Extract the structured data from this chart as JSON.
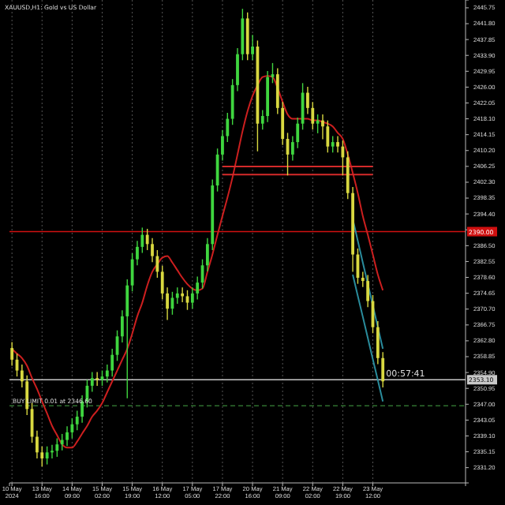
{
  "chart_data": {
    "type": "candlestick",
    "title": "XAUUSD,H1: Gold vs US Dollar",
    "categories": [
      "10 May 2024",
      null,
      null,
      null,
      null,
      null,
      "13 May 16:00",
      null,
      null,
      null,
      null,
      null,
      "14 May 09:00",
      null,
      null,
      null,
      null,
      null,
      "15 May 02:00",
      null,
      null,
      null,
      null,
      null,
      "15 May 19:00",
      null,
      null,
      null,
      null,
      null,
      "16 May 12:00",
      null,
      null,
      null,
      null,
      null,
      "17 May 05:00",
      null,
      null,
      null,
      null,
      null,
      "17 May 22:00",
      null,
      null,
      null,
      null,
      null,
      "20 May 16:00",
      null,
      null,
      null,
      null,
      null,
      "21 May 09:00",
      null,
      null,
      null,
      null,
      null,
      "22 May 02:00",
      null,
      null,
      null,
      null,
      null,
      "22 May 19:00",
      null,
      null,
      null,
      null,
      null,
      "23 May 12:00",
      null,
      null,
      null,
      null,
      null,
      null,
      null,
      null,
      null,
      null,
      null,
      null,
      null,
      null,
      null,
      null,
      null,
      null
    ],
    "ohlc": [
      [
        2361.0,
        2362.5,
        2356.6,
        2358.1
      ],
      [
        2358.1,
        2359.6,
        2353.9,
        2355.4
      ],
      [
        2355.4,
        2356.9,
        2351.2,
        2352.7
      ],
      [
        2352.7,
        2354.2,
        2344.3,
        2345.8
      ],
      [
        2345.8,
        2347.3,
        2337.4,
        2338.9
      ],
      [
        2338.9,
        2340.4,
        2333.5,
        2335.0
      ],
      [
        2335.0,
        2336.5,
        2331.5,
        2333.5
      ],
      [
        2333.5,
        2336.5,
        2332.0,
        2335.0
      ],
      [
        2335.0,
        2336.9,
        2333.5,
        2335.4
      ],
      [
        2335.4,
        2338.5,
        2333.9,
        2337.0
      ],
      [
        2337.0,
        2339.6,
        2335.5,
        2338.1
      ],
      [
        2338.1,
        2341.5,
        2336.6,
        2340.0
      ],
      [
        2340.0,
        2343.5,
        2338.5,
        2342.0
      ],
      [
        2342.0,
        2345.4,
        2340.5,
        2343.9
      ],
      [
        2343.9,
        2349.2,
        2342.4,
        2347.7
      ],
      [
        2347.7,
        2353.1,
        2346.2,
        2351.6
      ],
      [
        2351.6,
        2355.0,
        2350.1,
        2353.5
      ],
      [
        2353.5,
        2355.0,
        2351.6,
        2353.1
      ],
      [
        2353.1,
        2355.4,
        2351.6,
        2353.9
      ],
      [
        2353.9,
        2356.9,
        2352.4,
        2355.4
      ],
      [
        2355.4,
        2360.8,
        2353.9,
        2359.3
      ],
      [
        2359.3,
        2365.4,
        2357.8,
        2363.9
      ],
      [
        2363.9,
        2370.4,
        2362.4,
        2368.9
      ],
      [
        2368.9,
        2378.1,
        2348.5,
        2376.6
      ],
      [
        2376.6,
        2384.6,
        2375.1,
        2383.1
      ],
      [
        2383.1,
        2387.7,
        2381.6,
        2386.2
      ],
      [
        2386.2,
        2391.0,
        2384.7,
        2389.2
      ],
      [
        2389.2,
        2390.7,
        2385.4,
        2386.9
      ],
      [
        2386.9,
        2388.4,
        2382.4,
        2383.9
      ],
      [
        2383.9,
        2385.4,
        2378.5,
        2380.0
      ],
      [
        2380.0,
        2381.5,
        2373.1,
        2374.6
      ],
      [
        2374.6,
        2376.1,
        2368.0,
        2370.8
      ],
      [
        2370.8,
        2375.0,
        2369.3,
        2373.5
      ],
      [
        2373.5,
        2376.1,
        2372.0,
        2374.6
      ],
      [
        2374.6,
        2376.1,
        2372.4,
        2373.9
      ],
      [
        2373.9,
        2375.4,
        2370.5,
        2372.3
      ],
      [
        2372.3,
        2376.1,
        2370.8,
        2374.6
      ],
      [
        2374.6,
        2378.8,
        2373.1,
        2377.3
      ],
      [
        2377.3,
        2383.1,
        2375.8,
        2381.6
      ],
      [
        2381.6,
        2388.4,
        2380.1,
        2386.9
      ],
      [
        2386.9,
        2403.0,
        2385.4,
        2401.5
      ],
      [
        2401.5,
        2410.7,
        2400.0,
        2409.2
      ],
      [
        2409.2,
        2415.3,
        2407.7,
        2413.8
      ],
      [
        2413.8,
        2419.6,
        2412.3,
        2418.1
      ],
      [
        2418.1,
        2428.0,
        2416.6,
        2426.5
      ],
      [
        2426.5,
        2435.7,
        2425.0,
        2434.2
      ],
      [
        2434.2,
        2445.5,
        2432.7,
        2443.1
      ],
      [
        2443.1,
        2444.6,
        2432.7,
        2434.2
      ],
      [
        2434.2,
        2439.0,
        2432.7,
        2436.1
      ],
      [
        2436.1,
        2437.6,
        2410.0,
        2416.9
      ],
      [
        2416.9,
        2420.3,
        2415.4,
        2418.8
      ],
      [
        2418.8,
        2430.0,
        2417.3,
        2428.5
      ],
      [
        2428.5,
        2432.0,
        2427.0,
        2429.2
      ],
      [
        2429.2,
        2430.7,
        2419.3,
        2420.8
      ],
      [
        2420.8,
        2422.3,
        2411.6,
        2413.1
      ],
      [
        2413.1,
        2414.6,
        2404.0,
        2409.2
      ],
      [
        2409.2,
        2413.8,
        2407.7,
        2412.3
      ],
      [
        2412.3,
        2418.4,
        2410.8,
        2416.9
      ],
      [
        2416.9,
        2427.0,
        2415.4,
        2424.6
      ],
      [
        2424.6,
        2426.1,
        2419.3,
        2420.8
      ],
      [
        2420.8,
        2422.3,
        2415.4,
        2416.9
      ],
      [
        2416.9,
        2419.2,
        2414.5,
        2417.7
      ],
      [
        2417.7,
        2419.2,
        2413.0,
        2416.2
      ],
      [
        2416.2,
        2417.7,
        2409.7,
        2411.2
      ],
      [
        2411.2,
        2413.8,
        2409.7,
        2412.3
      ],
      [
        2412.3,
        2413.8,
        2409.7,
        2411.2
      ],
      [
        2411.2,
        2412.7,
        2404.0,
        2408.5
      ],
      [
        2408.5,
        2410.0,
        2398.1,
        2399.6
      ],
      [
        2399.6,
        2401.1,
        2380.0,
        2384.3
      ],
      [
        2384.3,
        2385.8,
        2377.0,
        2378.5
      ],
      [
        2378.5,
        2380.0,
        2376.2,
        2377.7
      ],
      [
        2377.7,
        2379.2,
        2371.2,
        2372.7
      ],
      [
        2372.7,
        2374.2,
        2364.7,
        2366.2
      ],
      [
        2366.2,
        2367.7,
        2357.0,
        2358.5
      ],
      [
        2358.5,
        2360.0,
        2351.2,
        2352.7
      ],
      null,
      null,
      null,
      null,
      null,
      null,
      null,
      null,
      null,
      null,
      null,
      null,
      null,
      null,
      null,
      null
    ],
    "colors": [
      "#d8d840",
      "#d8d840",
      "#d8d840",
      "#d8d840",
      "#d8d840",
      "#d8d840",
      "#d8d840",
      "#3fd63f",
      "#3fd63f",
      "#3fd63f",
      "#3fd63f",
      "#3fd63f",
      "#3fd63f",
      "#3fd63f",
      "#3fd63f",
      "#3fd63f",
      "#3fd63f",
      "#d8d840",
      "#3fd63f",
      "#3fd63f",
      "#3fd63f",
      "#3fd63f",
      "#3fd63f",
      "#3fd63f",
      "#3fd63f",
      "#3fd63f",
      "#3fd63f",
      "#d8d840",
      "#d8d840",
      "#d8d840",
      "#d8d840",
      "#d8d840",
      "#3fd63f",
      "#3fd63f",
      "#d8d840",
      "#d8d840",
      "#3fd63f",
      "#3fd63f",
      "#3fd63f",
      "#3fd63f",
      "#3fd63f",
      "#3fd63f",
      "#3fd63f",
      "#3fd63f",
      "#3fd63f",
      "#3fd63f",
      "#3fd63f",
      "#d8d840",
      "#3fd63f",
      "#d8d840",
      "#3fd63f",
      "#3fd63f",
      "#3fd63f",
      "#d8d840",
      "#d8d840",
      "#d8d840",
      "#3fd63f",
      "#3fd63f",
      "#3fd63f",
      "#d8d840",
      "#d8d840",
      "#3fd63f",
      "#d8d840",
      "#d8d840",
      "#3fd63f",
      "#d8d840",
      "#d8d840",
      "#d8d840",
      "#d8d840",
      "#d8d840",
      "#d8d840",
      "#d8d840",
      "#d8d840",
      "#d8d840",
      "#d8d840",
      null,
      null,
      null,
      null,
      null,
      null,
      null,
      null,
      null,
      null,
      null,
      null,
      null,
      null,
      null,
      null
    ],
    "series": [
      {
        "type": "line",
        "color": "#cc1f1f",
        "values": [
          2360.8,
          2359.6,
          2358.5,
          2356.6,
          2353.5,
          2350.8,
          2347.7,
          2344.7,
          2341.6,
          2339.3,
          2337.0,
          2336.2,
          2336.2,
          2337.7,
          2339.7,
          2341.6,
          2343.9,
          2345.4,
          2347.3,
          2350.0,
          2352.7,
          2355.4,
          2358.1,
          2360.8,
          2364.6,
          2368.9,
          2372.3,
          2376.6,
          2380.0,
          2381.9,
          2383.5,
          2383.9,
          2382.3,
          2380.4,
          2378.5,
          2376.9,
          2375.8,
          2375.4,
          2375.8,
          2380.0,
          2384.3,
          2389.2,
          2393.9,
          2398.5,
          2403.5,
          2409.2,
          2415.0,
          2420.0,
          2423.8,
          2426.5,
          2428.5,
          2428.8,
          2428.5,
          2425.8,
          2422.3,
          2419.2,
          2418.1,
          2418.1,
          2418.1,
          2418.1,
          2417.7,
          2417.7,
          2417.3,
          2416.9,
          2416.2,
          2414.6,
          2413.1,
          2409.2,
          2404.6,
          2399.6,
          2393.9,
          2389.2,
          2384.3,
          2379.3,
          2375.4,
          null,
          null,
          null,
          null,
          null,
          null,
          null,
          null,
          null,
          null,
          null,
          null,
          null,
          null,
          null,
          null
        ]
      },
      {
        "type": "line",
        "color": "#d42a2a",
        "values": [
          null,
          null,
          null,
          null,
          null,
          null,
          null,
          null,
          null,
          null,
          null,
          null,
          null,
          null,
          null,
          null,
          null,
          null,
          null,
          null,
          null,
          null,
          null,
          null,
          null,
          null,
          null,
          null,
          null,
          null,
          null,
          null,
          null,
          null,
          null,
          null,
          null,
          null,
          null,
          null,
          null,
          null,
          2406.2,
          2406.2,
          2406.2,
          2406.2,
          2406.2,
          2406.2,
          2406.2,
          2406.2,
          2406.2,
          2406.2,
          2406.2,
          2406.2,
          2406.2,
          2406.2,
          2406.2,
          2406.2,
          2406.2,
          2406.2,
          2406.2,
          2406.2,
          2406.2,
          2406.2,
          2406.2,
          2406.2,
          2406.2,
          2406.2,
          2406.2,
          2406.2,
          2406.2,
          2406.2,
          2406.2,
          null,
          null,
          null,
          null,
          null,
          null,
          null,
          null,
          null,
          null,
          null,
          null,
          null,
          null,
          null,
          null,
          null,
          null
        ]
      },
      {
        "type": "line",
        "color": "#d42a2a",
        "values": [
          null,
          null,
          null,
          null,
          null,
          null,
          null,
          null,
          null,
          null,
          null,
          null,
          null,
          null,
          null,
          null,
          null,
          null,
          null,
          null,
          null,
          null,
          null,
          null,
          null,
          null,
          null,
          null,
          null,
          null,
          null,
          null,
          null,
          null,
          null,
          null,
          null,
          null,
          null,
          null,
          null,
          null,
          2404.2,
          2404.2,
          2404.2,
          2404.2,
          2404.2,
          2404.2,
          2404.2,
          2404.2,
          2404.2,
          2404.2,
          2404.2,
          2404.2,
          2404.2,
          2404.2,
          2404.2,
          2404.2,
          2404.2,
          2404.2,
          2404.2,
          2404.2,
          2404.2,
          2404.2,
          2404.2,
          2404.2,
          2404.2,
          2404.2,
          2404.2,
          2404.2,
          2404.2,
          2404.2,
          2404.2,
          null,
          null,
          null,
          null,
          null,
          null,
          null,
          null,
          null,
          null,
          null,
          null,
          null,
          null,
          null,
          null,
          null,
          null
        ]
      },
      {
        "type": "line",
        "color": "#2a8c9c",
        "values": [
          null,
          null,
          null,
          null,
          null,
          null,
          null,
          null,
          null,
          null,
          null,
          null,
          null,
          null,
          null,
          null,
          null,
          null,
          null,
          null,
          null,
          null,
          null,
          null,
          null,
          null,
          null,
          null,
          null,
          null,
          null,
          null,
          null,
          null,
          null,
          null,
          null,
          null,
          null,
          null,
          null,
          null,
          null,
          null,
          null,
          null,
          null,
          null,
          null,
          null,
          null,
          null,
          null,
          null,
          null,
          null,
          null,
          null,
          null,
          null,
          null,
          null,
          null,
          null,
          null,
          null,
          null,
          null,
          2393.1,
          2387.7,
          2382.3,
          2377.0,
          2371.6,
          2366.2,
          2360.8,
          null,
          null,
          null,
          null,
          null,
          null,
          null,
          null,
          null,
          null,
          null,
          null,
          null,
          null,
          null,
          null
        ]
      },
      {
        "type": "line",
        "color": "#2a8c9c",
        "values": [
          null,
          null,
          null,
          null,
          null,
          null,
          null,
          null,
          null,
          null,
          null,
          null,
          null,
          null,
          null,
          null,
          null,
          null,
          null,
          null,
          null,
          null,
          null,
          null,
          null,
          null,
          null,
          null,
          null,
          null,
          null,
          null,
          null,
          null,
          null,
          null,
          null,
          null,
          null,
          null,
          null,
          null,
          null,
          null,
          null,
          null,
          null,
          null,
          null,
          null,
          null,
          null,
          null,
          null,
          null,
          null,
          null,
          null,
          null,
          null,
          null,
          null,
          null,
          null,
          null,
          null,
          null,
          null,
          2379.3,
          2374.0,
          2368.8,
          2363.5,
          2358.2,
          2353.0,
          2347.7,
          null,
          null,
          null,
          null,
          null,
          null,
          null,
          null,
          null,
          null,
          null,
          null,
          null,
          null,
          null,
          null
        ]
      }
    ],
    "ylim": [
      2327.4,
      2447.7
    ],
    "yticks": [
      {
        "value": 2331.2,
        "label": "2331.20"
      },
      {
        "value": 2335.15,
        "label": "2335.15"
      },
      {
        "value": 2339.1,
        "label": "2339.10"
      },
      {
        "value": 2343.05,
        "label": "2343.05"
      },
      {
        "value": 2347.0,
        "label": "2347.00"
      },
      {
        "value": 2350.95,
        "label": "2350.95"
      },
      {
        "value": 2354.9,
        "label": "2354.90"
      },
      {
        "value": 2358.85,
        "label": "2358.85"
      },
      {
        "value": 2362.8,
        "label": "2362.80"
      },
      {
        "value": 2366.75,
        "label": "2366.75"
      },
      {
        "value": 2370.7,
        "label": "2370.70"
      },
      {
        "value": 2374.65,
        "label": "2374.65"
      },
      {
        "value": 2378.6,
        "label": "2378.60"
      },
      {
        "value": 2382.55,
        "label": "2382.55"
      },
      {
        "value": 2386.5,
        "label": "2386.50"
      },
      {
        "value": 2390.45,
        "label": null
      },
      {
        "value": 2394.4,
        "label": "2394.40"
      },
      {
        "value": 2398.35,
        "label": "2398.35"
      },
      {
        "value": 2402.3,
        "label": "2402.30"
      },
      {
        "value": 2406.25,
        "label": "2406.25"
      },
      {
        "value": 2410.2,
        "label": "2410.20"
      },
      {
        "value": 2414.15,
        "label": "2414.15"
      },
      {
        "value": 2418.1,
        "label": "2418.10"
      },
      {
        "value": 2422.05,
        "label": "2422.05"
      },
      {
        "value": 2426.0,
        "label": "2426.00"
      },
      {
        "value": 2429.95,
        "label": "2429.95"
      },
      {
        "value": 2433.9,
        "label": "2433.90"
      },
      {
        "value": 2437.85,
        "label": "2437.85"
      },
      {
        "value": 2441.8,
        "label": "2441.80"
      },
      {
        "value": 2445.75,
        "label": "2445.75"
      }
    ],
    "grid": "x",
    "ref_lines": [
      {
        "axis": "y",
        "value": 2390.0,
        "label": "2390.00",
        "color": "#d01010",
        "line_style": "solid"
      },
      {
        "axis": "y",
        "value": 2353.1,
        "label": "2353.10",
        "color": "#c8c8c8",
        "line_style": "solid"
      },
      {
        "axis": "y",
        "value": 2346.6,
        "label": "BUY LIMIT 0.01 at 2346.60",
        "color": "#2f6f2f",
        "line_style": "dashed"
      }
    ],
    "annotations": [
      {
        "text": "00:57:41",
        "y": 2353.1
      }
    ]
  }
}
